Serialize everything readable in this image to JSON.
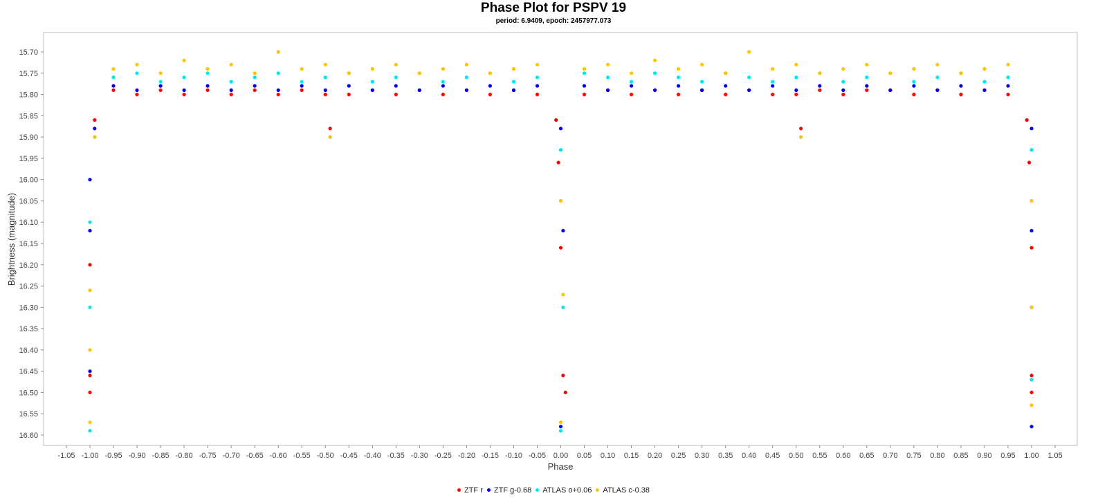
{
  "chart_data": {
    "type": "scatter",
    "title": "Phase Plot for PSPV 19",
    "subtitle": "period: 6.9409, epoch: 2457977.073",
    "xlabel": "Phase",
    "ylabel": "Brightness (magnitude)",
    "xlim": [
      -1.1,
      1.1
    ],
    "ylim": [
      15.66,
      16.64
    ],
    "y_inverted": true,
    "grid": false,
    "legend_position": "bottom-center",
    "x_ticks": [
      "-1.05",
      "-1.00",
      "-0.95",
      "-0.90",
      "-0.85",
      "-0.80",
      "-0.75",
      "-0.70",
      "-0.65",
      "-0.60",
      "-0.55",
      "-0.50",
      "-0.45",
      "-0.40",
      "-0.35",
      "-0.30",
      "-0.25",
      "-0.20",
      "-0.15",
      "-0.10",
      "-0.05",
      "0.00",
      "0.05",
      "0.10",
      "0.15",
      "0.20",
      "0.25",
      "0.30",
      "0.35",
      "0.40",
      "0.45",
      "0.50",
      "0.55",
      "0.60",
      "0.65",
      "0.70",
      "0.75",
      "0.80",
      "0.85",
      "0.90",
      "0.95",
      "1.00",
      "1.05"
    ],
    "y_ticks": [
      "15.70",
      "15.75",
      "15.80",
      "15.85",
      "15.90",
      "15.95",
      "16.00",
      "16.05",
      "16.10",
      "16.15",
      "16.20",
      "16.25",
      "16.30",
      "16.35",
      "16.40",
      "16.45",
      "16.50",
      "16.55",
      "16.60"
    ],
    "series": [
      {
        "name": "ZTF r",
        "color": "#ff0000",
        "points": [
          [
            -0.95,
            15.79
          ],
          [
            -0.9,
            15.8
          ],
          [
            -0.85,
            15.79
          ],
          [
            -0.8,
            15.8
          ],
          [
            -0.75,
            15.79
          ],
          [
            -0.7,
            15.8
          ],
          [
            -0.65,
            15.79
          ],
          [
            -0.6,
            15.8
          ],
          [
            -0.55,
            15.79
          ],
          [
            -0.5,
            15.8
          ],
          [
            -0.49,
            15.88
          ],
          [
            -0.45,
            15.8
          ],
          [
            -0.4,
            15.79
          ],
          [
            -0.35,
            15.8
          ],
          [
            -0.3,
            15.79
          ],
          [
            -0.25,
            15.8
          ],
          [
            -0.2,
            15.79
          ],
          [
            -0.15,
            15.8
          ],
          [
            -0.1,
            15.79
          ],
          [
            -0.05,
            15.8
          ],
          [
            -0.01,
            15.86
          ],
          [
            -0.005,
            15.96
          ],
          [
            0.0,
            16.16
          ],
          [
            0.005,
            16.46
          ],
          [
            0.01,
            16.5
          ],
          [
            0.05,
            15.8
          ],
          [
            0.1,
            15.79
          ],
          [
            0.15,
            15.8
          ],
          [
            0.2,
            15.79
          ],
          [
            0.25,
            15.8
          ],
          [
            0.3,
            15.79
          ],
          [
            0.35,
            15.8
          ],
          [
            0.4,
            15.79
          ],
          [
            0.45,
            15.8
          ],
          [
            0.5,
            15.8
          ],
          [
            0.51,
            15.88
          ],
          [
            0.55,
            15.79
          ],
          [
            0.6,
            15.8
          ],
          [
            0.65,
            15.79
          ],
          [
            0.7,
            15.79
          ],
          [
            0.75,
            15.8
          ],
          [
            0.8,
            15.79
          ],
          [
            0.85,
            15.8
          ],
          [
            0.9,
            15.79
          ],
          [
            0.95,
            15.8
          ],
          [
            0.99,
            15.86
          ],
          [
            0.995,
            15.96
          ],
          [
            1.0,
            16.16
          ],
          [
            1.0,
            16.46
          ],
          [
            1.0,
            16.5
          ],
          [
            -0.99,
            15.86
          ],
          [
            -1.0,
            16.2
          ],
          [
            -1.0,
            16.46
          ],
          [
            -1.0,
            16.5
          ]
        ]
      },
      {
        "name": "ZTF g-0.68",
        "color": "#0000ee",
        "points": [
          [
            -0.95,
            15.78
          ],
          [
            -0.9,
            15.79
          ],
          [
            -0.85,
            15.78
          ],
          [
            -0.8,
            15.79
          ],
          [
            -0.75,
            15.78
          ],
          [
            -0.7,
            15.79
          ],
          [
            -0.65,
            15.78
          ],
          [
            -0.6,
            15.79
          ],
          [
            -0.55,
            15.78
          ],
          [
            -0.5,
            15.79
          ],
          [
            -0.45,
            15.78
          ],
          [
            -0.4,
            15.79
          ],
          [
            -0.35,
            15.78
          ],
          [
            -0.3,
            15.79
          ],
          [
            -0.25,
            15.78
          ],
          [
            -0.2,
            15.79
          ],
          [
            -0.15,
            15.78
          ],
          [
            -0.1,
            15.79
          ],
          [
            -0.05,
            15.78
          ],
          [
            0.0,
            15.88
          ],
          [
            0.005,
            16.12
          ],
          [
            0.0,
            16.58
          ],
          [
            0.05,
            15.78
          ],
          [
            0.1,
            15.79
          ],
          [
            0.15,
            15.78
          ],
          [
            0.2,
            15.79
          ],
          [
            0.25,
            15.78
          ],
          [
            0.3,
            15.79
          ],
          [
            0.35,
            15.78
          ],
          [
            0.4,
            15.79
          ],
          [
            0.45,
            15.78
          ],
          [
            0.5,
            15.79
          ],
          [
            0.55,
            15.78
          ],
          [
            0.6,
            15.79
          ],
          [
            0.65,
            15.78
          ],
          [
            0.7,
            15.79
          ],
          [
            0.75,
            15.78
          ],
          [
            0.8,
            15.79
          ],
          [
            0.85,
            15.78
          ],
          [
            0.9,
            15.79
          ],
          [
            0.95,
            15.78
          ],
          [
            1.0,
            15.88
          ],
          [
            1.0,
            16.12
          ],
          [
            1.0,
            16.58
          ],
          [
            -0.99,
            15.88
          ],
          [
            -1.0,
            16.0
          ],
          [
            -1.0,
            16.12
          ],
          [
            -1.0,
            16.45
          ]
        ]
      },
      {
        "name": "ATLAS o+0.06",
        "color": "#00e8e8",
        "points": [
          [
            -0.95,
            15.76
          ],
          [
            -0.9,
            15.75
          ],
          [
            -0.85,
            15.77
          ],
          [
            -0.8,
            15.76
          ],
          [
            -0.75,
            15.75
          ],
          [
            -0.7,
            15.77
          ],
          [
            -0.65,
            15.76
          ],
          [
            -0.6,
            15.75
          ],
          [
            -0.55,
            15.77
          ],
          [
            -0.5,
            15.76
          ],
          [
            -0.49,
            15.9
          ],
          [
            -0.45,
            15.75
          ],
          [
            -0.4,
            15.77
          ],
          [
            -0.35,
            15.76
          ],
          [
            -0.3,
            15.75
          ],
          [
            -0.25,
            15.77
          ],
          [
            -0.2,
            15.76
          ],
          [
            -0.15,
            15.75
          ],
          [
            -0.1,
            15.77
          ],
          [
            -0.05,
            15.76
          ],
          [
            0.0,
            15.93
          ],
          [
            0.005,
            16.3
          ],
          [
            0.0,
            16.59
          ],
          [
            0.05,
            15.75
          ],
          [
            0.1,
            15.76
          ],
          [
            0.15,
            15.77
          ],
          [
            0.2,
            15.75
          ],
          [
            0.25,
            15.76
          ],
          [
            0.3,
            15.77
          ],
          [
            0.35,
            15.75
          ],
          [
            0.4,
            15.76
          ],
          [
            0.45,
            15.77
          ],
          [
            0.5,
            15.76
          ],
          [
            0.51,
            15.9
          ],
          [
            0.55,
            15.75
          ],
          [
            0.6,
            15.77
          ],
          [
            0.65,
            15.76
          ],
          [
            0.7,
            15.75
          ],
          [
            0.75,
            15.77
          ],
          [
            0.8,
            15.76
          ],
          [
            0.85,
            15.75
          ],
          [
            0.9,
            15.77
          ],
          [
            0.95,
            15.76
          ],
          [
            1.0,
            15.93
          ],
          [
            1.0,
            16.3
          ],
          [
            1.0,
            16.47
          ],
          [
            -0.99,
            15.9
          ],
          [
            -1.0,
            16.1
          ],
          [
            -1.0,
            16.3
          ],
          [
            -1.0,
            16.59
          ]
        ]
      },
      {
        "name": "ATLAS c-0.38",
        "color": "#ffc400",
        "points": [
          [
            -0.95,
            15.74
          ],
          [
            -0.9,
            15.73
          ],
          [
            -0.85,
            15.75
          ],
          [
            -0.8,
            15.72
          ],
          [
            -0.75,
            15.74
          ],
          [
            -0.7,
            15.73
          ],
          [
            -0.65,
            15.75
          ],
          [
            -0.6,
            15.7
          ],
          [
            -0.55,
            15.74
          ],
          [
            -0.5,
            15.73
          ],
          [
            -0.49,
            15.9
          ],
          [
            -0.45,
            15.75
          ],
          [
            -0.4,
            15.74
          ],
          [
            -0.35,
            15.73
          ],
          [
            -0.3,
            15.75
          ],
          [
            -0.25,
            15.74
          ],
          [
            -0.2,
            15.73
          ],
          [
            -0.15,
            15.75
          ],
          [
            -0.1,
            15.74
          ],
          [
            -0.05,
            15.73
          ],
          [
            0.0,
            16.05
          ],
          [
            0.005,
            16.27
          ],
          [
            0.0,
            16.57
          ],
          [
            0.05,
            15.74
          ],
          [
            0.1,
            15.73
          ],
          [
            0.15,
            15.75
          ],
          [
            0.2,
            15.72
          ],
          [
            0.25,
            15.74
          ],
          [
            0.3,
            15.73
          ],
          [
            0.35,
            15.75
          ],
          [
            0.4,
            15.7
          ],
          [
            0.45,
            15.74
          ],
          [
            0.5,
            15.73
          ],
          [
            0.51,
            15.9
          ],
          [
            0.55,
            15.75
          ],
          [
            0.6,
            15.74
          ],
          [
            0.65,
            15.73
          ],
          [
            0.7,
            15.75
          ],
          [
            0.75,
            15.74
          ],
          [
            0.8,
            15.73
          ],
          [
            0.85,
            15.75
          ],
          [
            0.9,
            15.74
          ],
          [
            0.95,
            15.73
          ],
          [
            1.0,
            16.05
          ],
          [
            1.0,
            16.3
          ],
          [
            1.0,
            16.53
          ],
          [
            -0.99,
            15.9
          ],
          [
            -1.0,
            16.26
          ],
          [
            -1.0,
            16.4
          ],
          [
            -1.0,
            16.57
          ]
        ]
      }
    ]
  }
}
